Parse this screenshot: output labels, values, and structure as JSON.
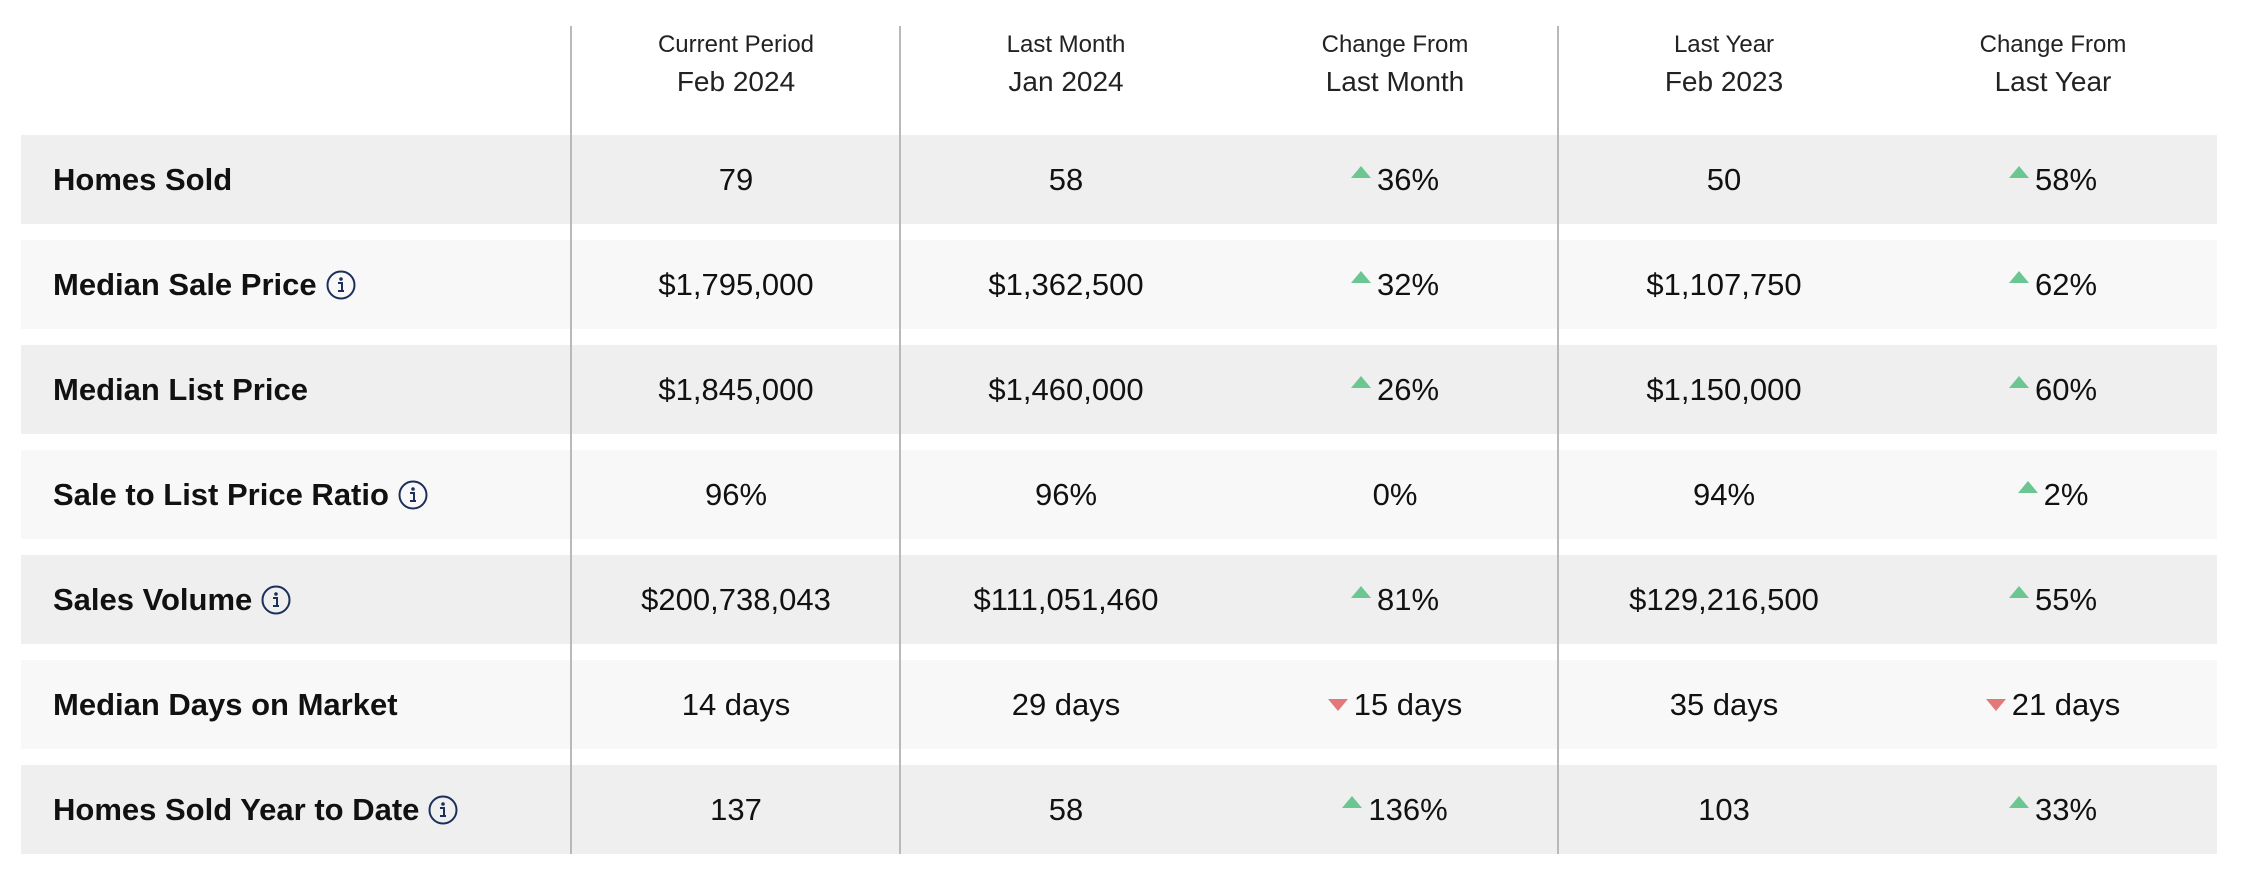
{
  "columns": [
    {
      "sub": "Current Period",
      "main": "Feb 2024"
    },
    {
      "sub": "Last Month",
      "main": "Jan 2024"
    },
    {
      "sub": "Change From",
      "main": "Last Month"
    },
    {
      "sub": "Last Year",
      "main": "Feb 2023"
    },
    {
      "sub": "Change From",
      "main": "Last Year"
    }
  ],
  "rows": [
    {
      "label": "Homes Sold",
      "info": false,
      "current": "79",
      "last_month": "58",
      "change_month": {
        "dir": "up",
        "text": "36%"
      },
      "last_year": "50",
      "change_year": {
        "dir": "up",
        "text": "58%"
      }
    },
    {
      "label": "Median Sale Price",
      "info": true,
      "current": "$1,795,000",
      "last_month": "$1,362,500",
      "change_month": {
        "dir": "up",
        "text": "32%"
      },
      "last_year": "$1,107,750",
      "change_year": {
        "dir": "up",
        "text": "62%"
      }
    },
    {
      "label": "Median List Price",
      "info": false,
      "current": "$1,845,000",
      "last_month": "$1,460,000",
      "change_month": {
        "dir": "up",
        "text": "26%"
      },
      "last_year": "$1,150,000",
      "change_year": {
        "dir": "up",
        "text": "60%"
      }
    },
    {
      "label": "Sale to List Price Ratio",
      "info": true,
      "current": "96%",
      "last_month": "96%",
      "change_month": {
        "dir": "none",
        "text": "0%"
      },
      "last_year": "94%",
      "change_year": {
        "dir": "up",
        "text": "2%"
      }
    },
    {
      "label": "Sales Volume",
      "info": true,
      "current": "$200,738,043",
      "last_month": "$111,051,460",
      "change_month": {
        "dir": "up",
        "text": "81%"
      },
      "last_year": "$129,216,500",
      "change_year": {
        "dir": "up",
        "text": "55%"
      }
    },
    {
      "label": "Median Days on Market",
      "info": false,
      "current": "14 days",
      "last_month": "29 days",
      "change_month": {
        "dir": "down",
        "text": "15 days"
      },
      "last_year": "35 days",
      "change_year": {
        "dir": "down",
        "text": "21 days"
      }
    },
    {
      "label": "Homes Sold Year to Date",
      "info": true,
      "current": "137",
      "last_month": "58",
      "change_month": {
        "dir": "up",
        "text": "136%"
      },
      "last_year": "103",
      "change_year": {
        "dir": "up",
        "text": "33%"
      }
    }
  ],
  "colors": {
    "up_arrow": "#6cc691",
    "down_arrow": "#e27878",
    "info_icon": "#1b2f5a",
    "row_dark": "#efefef",
    "row_light": "#f8f8f8"
  },
  "icons": {
    "info": "info-circle-icon",
    "up": "triangle-up-icon",
    "down": "triangle-down-icon"
  }
}
